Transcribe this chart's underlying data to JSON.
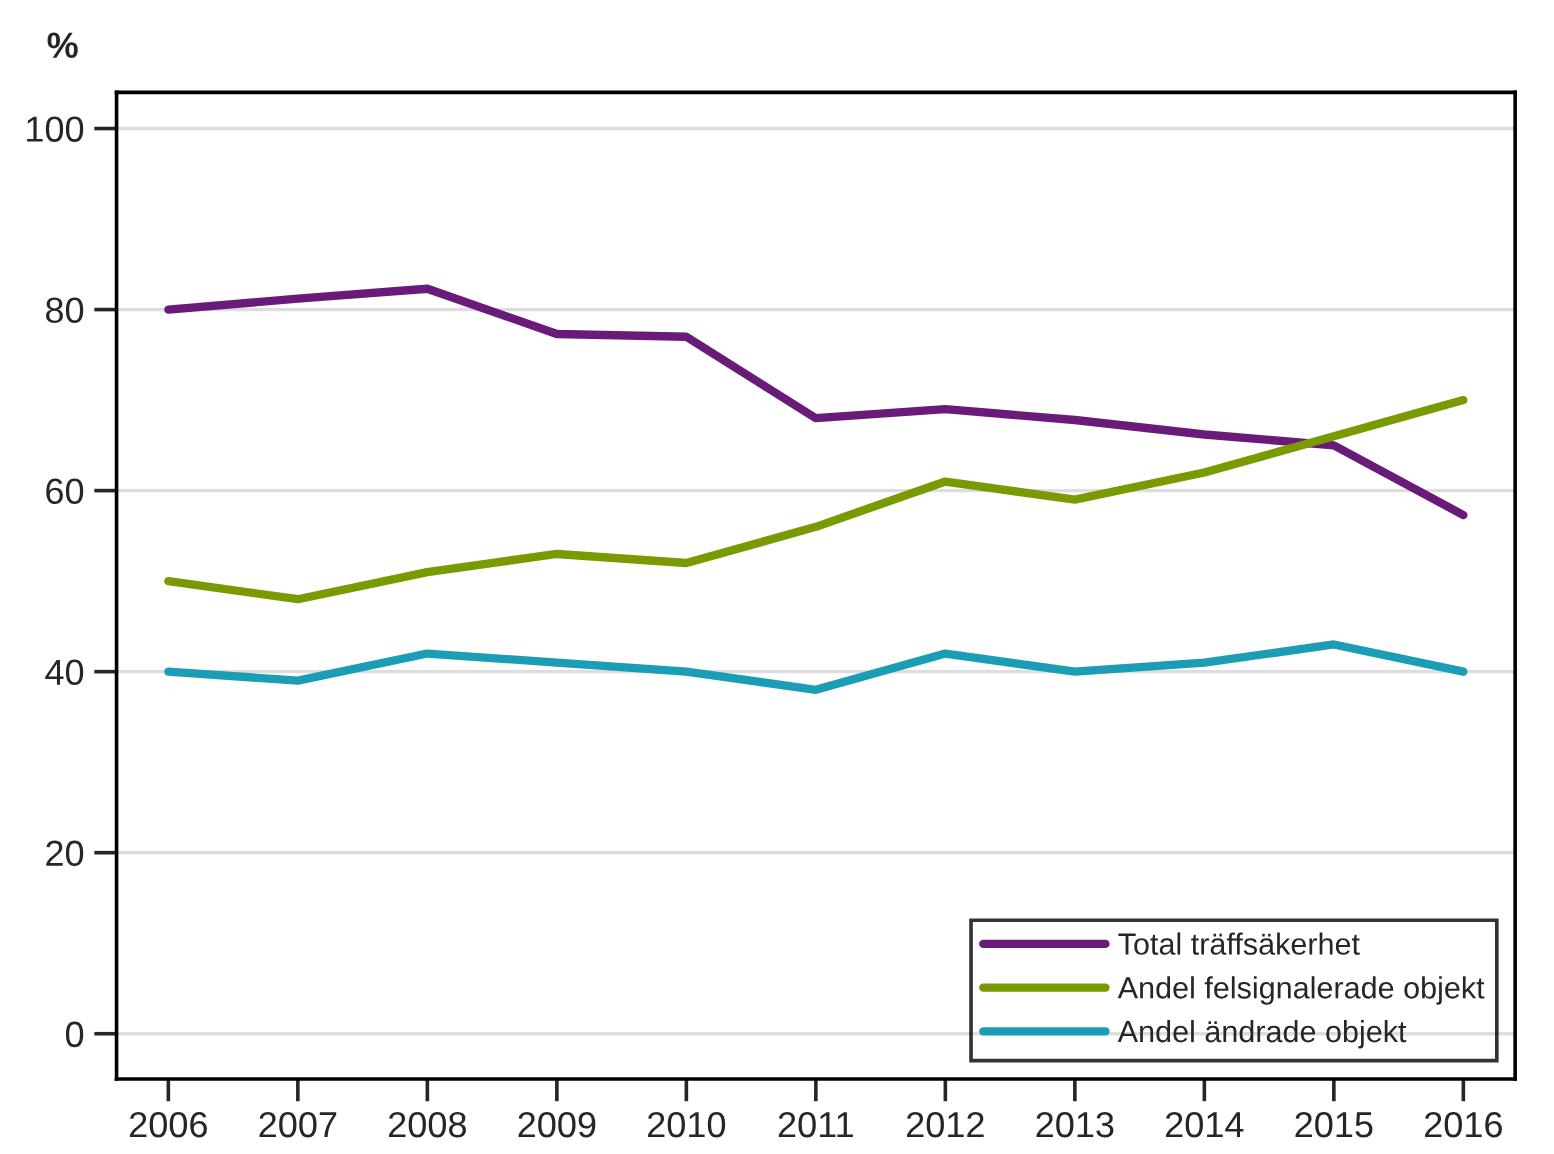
{
  "chart_data": {
    "type": "line",
    "ylabel": "%",
    "x": [
      2006,
      2007,
      2008,
      2009,
      2010,
      2011,
      2012,
      2013,
      2014,
      2015,
      2016
    ],
    "series": [
      {
        "name": "Total träffsäkerhet",
        "color": "#6a1b7a",
        "values": [
          80,
          81.2,
          82.3,
          77.3,
          77,
          68,
          69,
          67.8,
          66.2,
          65,
          57.3
        ]
      },
      {
        "name": "Andel felsignalerade objekt",
        "color": "#7a9a01",
        "values": [
          50,
          48,
          51,
          53,
          52,
          56,
          61,
          59,
          62,
          66,
          70
        ]
      },
      {
        "name": "Andel ändrade objekt",
        "color": "#1a9db5",
        "values": [
          40,
          39,
          42,
          41,
          40,
          38,
          42,
          40,
          41,
          43,
          40
        ]
      }
    ],
    "xlim": [
      2005.6,
      2016.4
    ],
    "xticks": [
      2006,
      2007,
      2008,
      2009,
      2010,
      2011,
      2012,
      2013,
      2014,
      2015,
      2016
    ],
    "ylim": [
      -5,
      104
    ],
    "yticks": [
      0,
      20,
      40,
      60,
      80,
      100
    ],
    "grid": "y",
    "legend": "bottom right",
    "marker": "none",
    "line_style": "solid"
  }
}
